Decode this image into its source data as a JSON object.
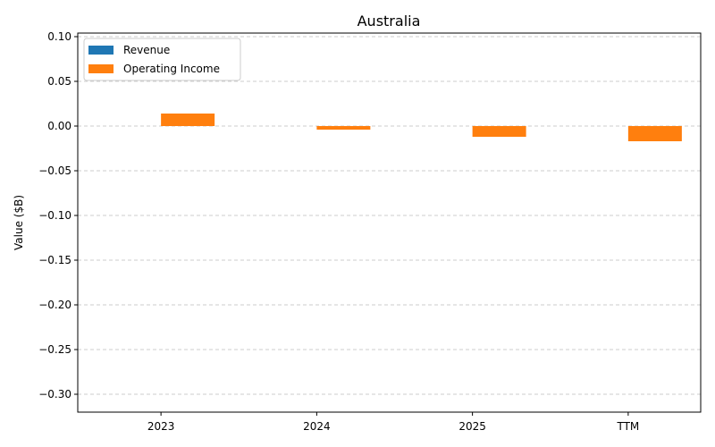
{
  "chart_data": {
    "type": "bar",
    "title": "Australia",
    "xlabel": "",
    "ylabel": "Value ($B)",
    "categories": [
      "2023",
      "2024",
      "2025",
      "TTM"
    ],
    "series": [
      {
        "name": "Revenue",
        "color": "#1f77b4",
        "values": [
          0,
          0,
          0,
          0
        ]
      },
      {
        "name": "Operating Income",
        "color": "#ff7f0e",
        "values": [
          0.014,
          -0.004,
          -0.012,
          -0.017
        ]
      }
    ],
    "ylim": [
      -0.32,
      0.104
    ],
    "yticks": [
      "0.10",
      "0.05",
      "0.00",
      "−0.05",
      "−0.10",
      "−0.15",
      "−0.20",
      "−0.25",
      "−0.30"
    ],
    "ytick_values": [
      0.1,
      0.05,
      0.0,
      -0.05,
      -0.1,
      -0.15,
      -0.2,
      -0.25,
      -0.3
    ],
    "grid": "y-dashed",
    "legend": "top-left"
  }
}
